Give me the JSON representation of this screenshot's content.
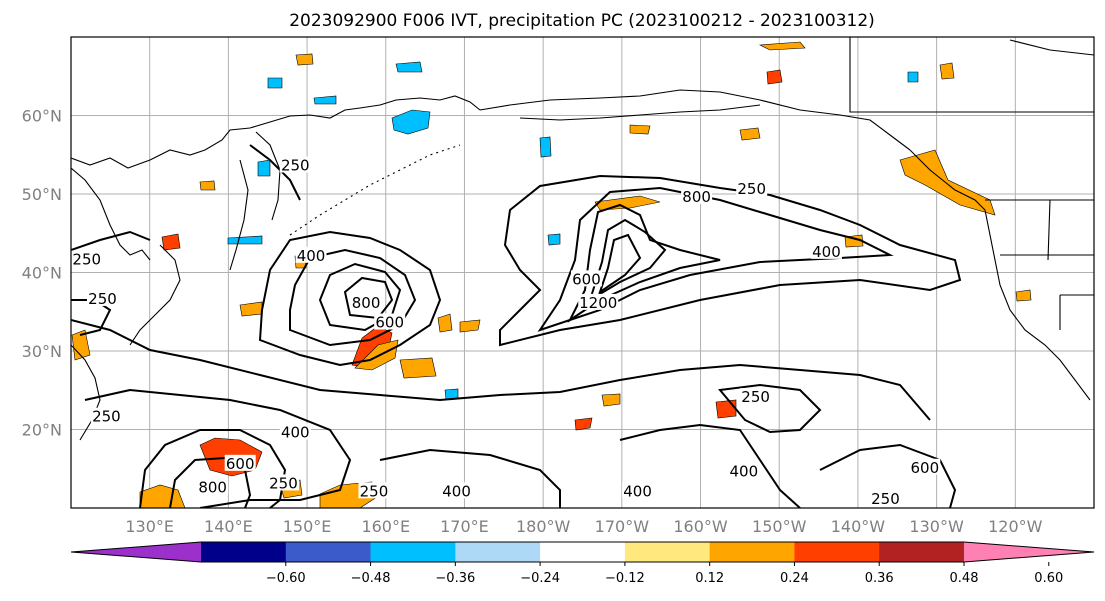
{
  "title": "2023092900 F006 IVT, precipitation PC (2023100212 - 2023100312)",
  "map": {
    "lon_range": [
      120,
      250
    ],
    "lat_range": [
      10,
      70
    ],
    "lat_ticks": [
      {
        "value": 60,
        "label": "60°N"
      },
      {
        "value": 50,
        "label": "50°N"
      },
      {
        "value": 40,
        "label": "40°N"
      },
      {
        "value": 30,
        "label": "30°N"
      },
      {
        "value": 20,
        "label": "20°N"
      }
    ],
    "lon_ticks": [
      {
        "value": 130,
        "label": "130°E"
      },
      {
        "value": 140,
        "label": "140°E"
      },
      {
        "value": 150,
        "label": "150°E"
      },
      {
        "value": 160,
        "label": "160°E"
      },
      {
        "value": 170,
        "label": "170°E"
      },
      {
        "value": 180,
        "label": "180°W"
      },
      {
        "value": 190,
        "label": "170°W"
      },
      {
        "value": 200,
        "label": "160°W"
      },
      {
        "value": 210,
        "label": "150°W"
      },
      {
        "value": 220,
        "label": "140°W"
      },
      {
        "value": 230,
        "label": "130°W"
      },
      {
        "value": 240,
        "label": "120°W"
      }
    ],
    "gridlines": true,
    "contour_labels": [
      {
        "text": "250",
        "lon": 148.5,
        "lat": 53.5
      },
      {
        "text": "250",
        "lon": 122.0,
        "lat": 41.5
      },
      {
        "text": "250",
        "lon": 124.0,
        "lat": 36.5
      },
      {
        "text": "400",
        "lon": 150.5,
        "lat": 42.0
      },
      {
        "text": "800",
        "lon": 157.5,
        "lat": 36.0
      },
      {
        "text": "600",
        "lon": 160.5,
        "lat": 33.5
      },
      {
        "text": "250",
        "lon": 206.5,
        "lat": 50.5
      },
      {
        "text": "800",
        "lon": 199.5,
        "lat": 49.5
      },
      {
        "text": "400",
        "lon": 216.0,
        "lat": 42.5
      },
      {
        "text": "600",
        "lon": 185.5,
        "lat": 39.0
      },
      {
        "text": "1200",
        "lon": 187.0,
        "lat": 36.0
      },
      {
        "text": "250",
        "lon": 124.5,
        "lat": 21.5
      },
      {
        "text": "400",
        "lon": 148.5,
        "lat": 19.5
      },
      {
        "text": "600",
        "lon": 141.5,
        "lat": 15.5
      },
      {
        "text": "800",
        "lon": 138.0,
        "lat": 12.5
      },
      {
        "text": "250",
        "lon": 147.0,
        "lat": 13.0
      },
      {
        "text": "250",
        "lon": 158.5,
        "lat": 12.0
      },
      {
        "text": "400",
        "lon": 169.0,
        "lat": 12.0
      },
      {
        "text": "400",
        "lon": 192.0,
        "lat": 12.0
      },
      {
        "text": "400",
        "lon": 205.5,
        "lat": 14.5
      },
      {
        "text": "250",
        "lon": 207.0,
        "lat": 24.0
      },
      {
        "text": "600",
        "lon": 228.5,
        "lat": 15.0
      },
      {
        "text": "250",
        "lon": 223.5,
        "lat": 11.0
      }
    ]
  },
  "colorbar": {
    "ticks": [
      "−0.60",
      "−0.48",
      "−0.36",
      "−0.24",
      "−0.12",
      "0.12",
      "0.24",
      "0.36",
      "0.48",
      "0.60"
    ],
    "colors": [
      "#9b30ca",
      "#00008b",
      "#3a5bc9",
      "#00bfff",
      "#add8f6",
      "#ffffff",
      "#ffe97f",
      "#ffa500",
      "#ff3f00",
      "#b22222",
      "#ff81b3"
    ]
  }
}
